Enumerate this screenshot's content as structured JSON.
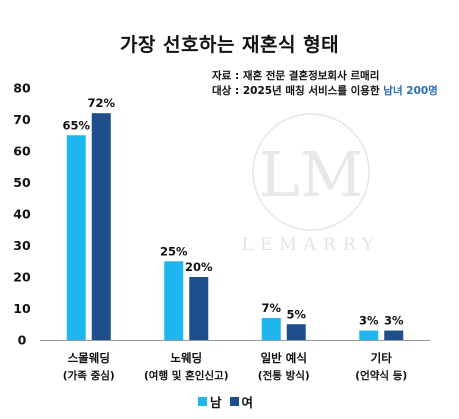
{
  "title": "가장 선호하는 재혼식 형태",
  "notes": {
    "source": "자료 : 재혼 전문 결혼정보회사 르매리",
    "target_prefix": "대상 : 2025년 매칭 서비스를 이용한 ",
    "target_highlight": "남녀 200명"
  },
  "watermark": {
    "monogram": "LM",
    "text": "LEMARRY"
  },
  "colors": {
    "male": "#1fb5ef",
    "female": "#1f4e8c",
    "highlight": "#2a6db5"
  },
  "chart_data": {
    "type": "bar",
    "title": "가장 선호하는 재혼식 형태",
    "categories": [
      "스몰웨딩",
      "노웨딩",
      "일반 예식",
      "기타"
    ],
    "category_subtitles": [
      "(가족 중심)",
      "(여행 및 혼인신고)",
      "(전통 방식)",
      "(언약식 등)"
    ],
    "series": [
      {
        "name": "남",
        "values": [
          65,
          25,
          7,
          3
        ],
        "labels": [
          "65%",
          "25%",
          "7%",
          "3%"
        ]
      },
      {
        "name": "여",
        "values": [
          72,
          20,
          5,
          3
        ],
        "labels": [
          "72%",
          "20%",
          "5%",
          "3%"
        ]
      }
    ],
    "ylim": [
      0,
      80
    ],
    "yticks": [
      0,
      10,
      20,
      30,
      40,
      50,
      60,
      70,
      80
    ],
    "grid": false,
    "legend": "bottom"
  }
}
